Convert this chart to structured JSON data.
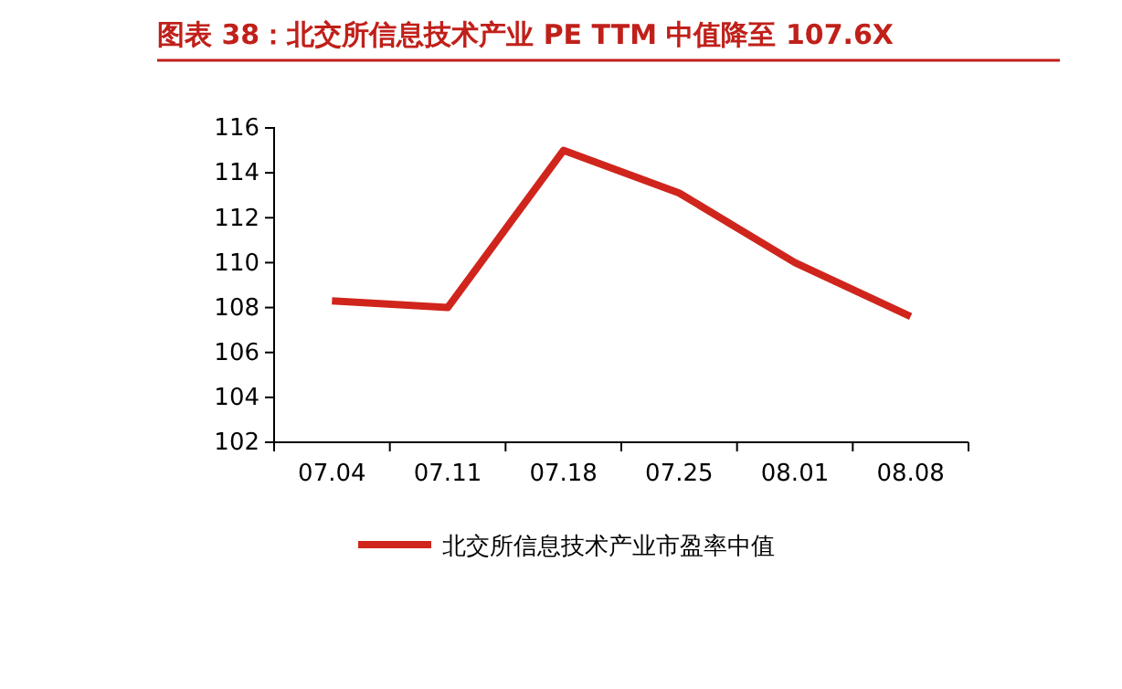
{
  "chart_data": {
    "type": "line",
    "title": "图表 38：北交所信息技术产业 PE TTM 中值降至 107.6X",
    "categories": [
      "07.04",
      "07.11",
      "07.18",
      "07.25",
      "08.01",
      "08.08"
    ],
    "series": [
      {
        "name": "北交所信息技术产业市盈率中值",
        "color": "#d0251c",
        "values": [
          108.3,
          108.0,
          115.0,
          113.1,
          110.0,
          107.6
        ]
      }
    ],
    "ylim": [
      102,
      116
    ],
    "yticks": [
      102,
      104,
      106,
      108,
      110,
      112,
      114,
      116
    ],
    "grid": false,
    "legend": "bottom",
    "marker": "none",
    "line_style": "solid"
  }
}
